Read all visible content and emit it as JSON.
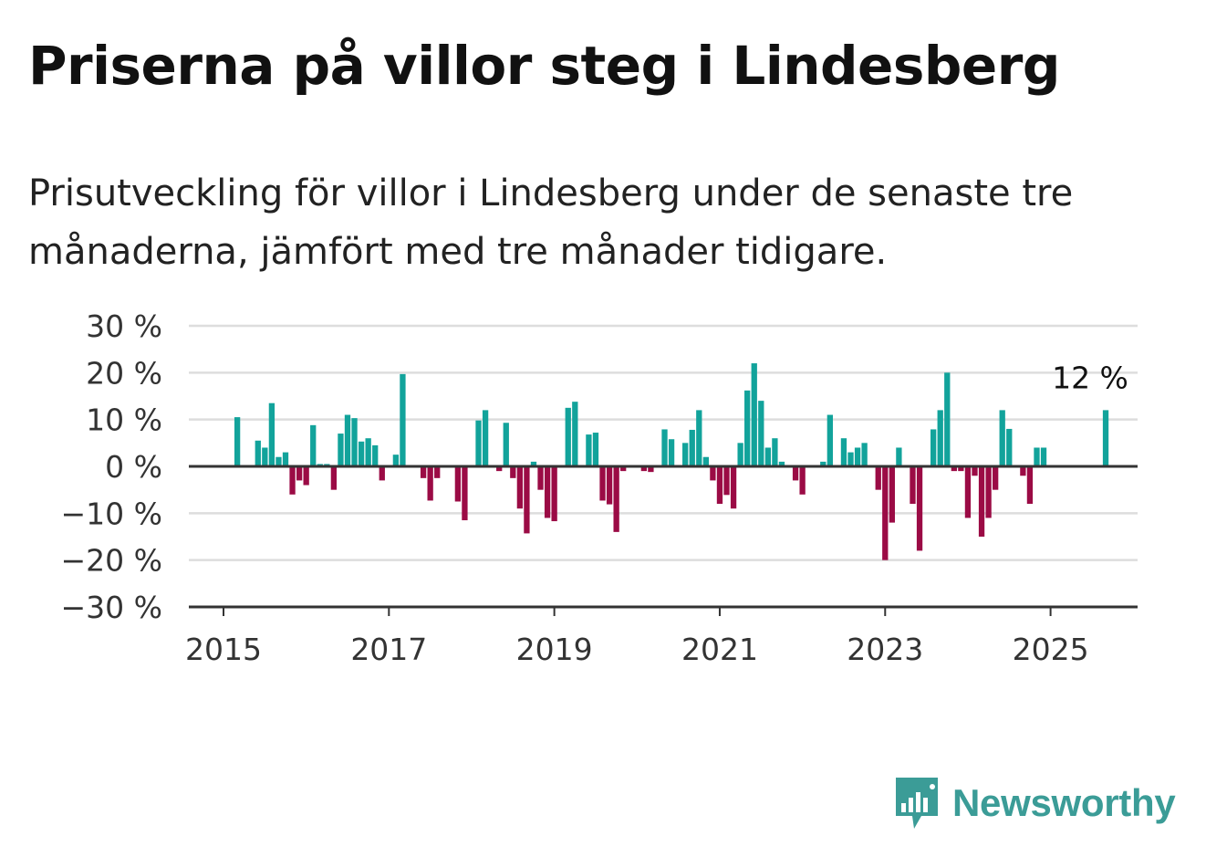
{
  "title": "Priserna på villor steg i Lindesberg",
  "subtitle": "Prisutveckling för villor i Lindesberg under de senaste tre månaderna, jämfört med tre månader tidigare.",
  "brand": {
    "name": "Newsworthy",
    "color": "#3b9c97",
    "icon": "newsworthy-logo-icon"
  },
  "colors": {
    "positive": "#12a39b",
    "negative": "#9b0b45",
    "grid": "#dddddd",
    "axis": "#333333"
  },
  "chart_data": {
    "type": "bar",
    "x_unit": "month",
    "x_start": "2015-01",
    "x_labels": [
      "2015",
      "2017",
      "2019",
      "2021",
      "2023",
      "2025"
    ],
    "y_ticks": [
      "30 %",
      "20 %",
      "10 %",
      "0 %",
      "−10 %",
      "−20 %",
      "−30 %"
    ],
    "ylim": [
      -30,
      30
    ],
    "grid": true,
    "annotation": {
      "text": "12 %",
      "month": "2025-07"
    },
    "values": [
      null,
      null,
      10.5,
      null,
      null,
      5.5,
      4,
      13.5,
      2,
      3,
      -6,
      -3,
      -4,
      8.8,
      0.5,
      0.5,
      -5,
      7,
      11,
      10.3,
      5.3,
      6,
      4.5,
      -3,
      null,
      2.5,
      19.7,
      null,
      null,
      -2.5,
      -7.3,
      -2.5,
      null,
      null,
      -7.5,
      -11.5,
      null,
      9.8,
      12,
      null,
      -1,
      9.3,
      -2.5,
      -9,
      -14.3,
      1,
      -5,
      -11,
      -11.7,
      null,
      12.5,
      13.8,
      null,
      6.8,
      7.2,
      -7.3,
      -8.1,
      -14,
      -1,
      null,
      null,
      -1,
      -1.2,
      null,
      7.9,
      5.8,
      null,
      5,
      7.8,
      12,
      2,
      -3,
      -8,
      -6.1,
      -9,
      5,
      16.2,
      22,
      14,
      4,
      6,
      1,
      null,
      -3,
      -6,
      null,
      null,
      1,
      11,
      null,
      6,
      3,
      4,
      5,
      null,
      -5,
      -20,
      -12,
      4,
      null,
      -8,
      -18,
      null,
      7.9,
      12,
      20,
      -1,
      -1,
      -11,
      -2,
      -15,
      -11,
      -5,
      12,
      8,
      null,
      -2,
      -8,
      4,
      4,
      null,
      null,
      null,
      null,
      null,
      null,
      null,
      null,
      12
    ]
  }
}
